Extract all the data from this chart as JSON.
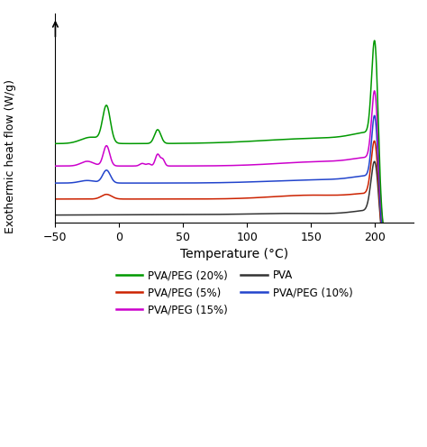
{
  "xlim": [
    -50,
    230
  ],
  "xlabel": "Temperature (°C)",
  "ylabel": "Exothermic heat flow (W/g)",
  "xticks": [
    -50,
    0,
    50,
    100,
    150,
    200
  ],
  "colors": {
    "pva20": "#009900",
    "pva15": "#cc00cc",
    "pva10": "#2244cc",
    "pva5": "#cc2200",
    "pva": "#333333"
  },
  "background": "#ffffff",
  "linewidth": 1.1
}
